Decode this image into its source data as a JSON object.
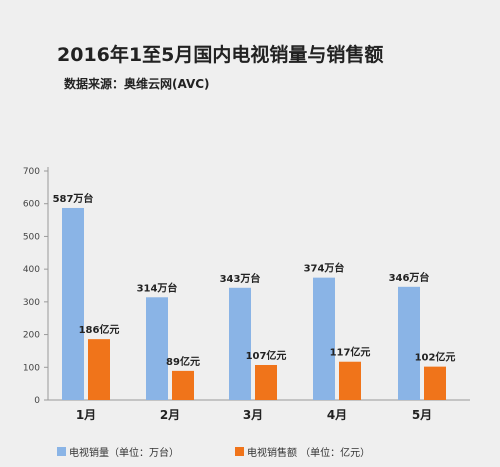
{
  "header": {
    "title": "2016年1至5月国内电视销量与销售额",
    "subtitle": "数据来源：奥维云网(AVC)"
  },
  "chart_data": {
    "type": "bar",
    "categories": [
      "1月",
      "2月",
      "3月",
      "4月",
      "5月"
    ],
    "series": [
      {
        "name": "电视销量（单位：万台）",
        "values": [
          587,
          314,
          343,
          374,
          346
        ],
        "data_labels": [
          "587万台",
          "314万台",
          "343万台",
          "374万台",
          "346万台"
        ],
        "color": "#8ab4e6"
      },
      {
        "name": "电视销售额 （单位：亿元）",
        "values": [
          186,
          89,
          107,
          117,
          102
        ],
        "data_labels": [
          "186亿元",
          "89亿元",
          "107亿元",
          "117亿元",
          "102亿元"
        ],
        "color": "#f0741a"
      }
    ],
    "ylim": [
      0,
      700
    ],
    "yticks": [
      "0",
      "100",
      "200",
      "300",
      "400",
      "500",
      "600",
      "700"
    ],
    "grid": false,
    "legend_position": "bottom"
  }
}
